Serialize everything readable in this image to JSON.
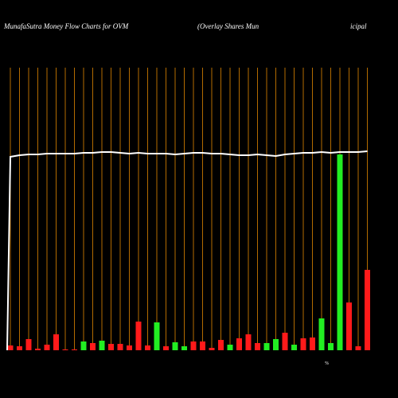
{
  "chart_data": {
    "type": "bar",
    "title": "MunafaSutra  Money Flow  Charts for OVM",
    "subtitle_parts": [
      "(Overlay Shares Mun",
      "icipal"
    ],
    "annotations": [
      "%"
    ],
    "categories": [
      null,
      null,
      null,
      null,
      null,
      null,
      null,
      null,
      null,
      null,
      null,
      null,
      null,
      null,
      null,
      null,
      null,
      null,
      null,
      null,
      null,
      null,
      null,
      null,
      null,
      null,
      null,
      null,
      null,
      null,
      null,
      null,
      null,
      null,
      null,
      null,
      null,
      null,
      null,
      null
    ],
    "values": [
      6,
      5,
      14,
      2,
      7,
      20,
      1,
      1,
      11,
      9,
      12,
      8,
      8,
      6,
      36,
      6,
      35,
      5,
      10,
      5,
      11,
      11,
      3,
      13,
      7,
      15,
      20,
      9,
      9,
      14,
      22,
      7,
      15,
      16,
      40,
      9,
      246,
      60,
      5,
      101
    ],
    "colors": [
      "#ff1a1a",
      "#ff1a1a",
      "#ff1a1a",
      "#ff1a1a",
      "#ff1a1a",
      "#ff1a1a",
      "#ff1a1a",
      "#ff1a1a",
      "#22ee22",
      "#ff1a1a",
      "#22ee22",
      "#ff1a1a",
      "#ff1a1a",
      "#ff1a1a",
      "#ff1a1a",
      "#ff1a1a",
      "#22ee22",
      "#ff1a1a",
      "#22ee22",
      "#22ee22",
      "#ff1a1a",
      "#ff1a1a",
      "#ff1a1a",
      "#ff1a1a",
      "#22ee22",
      "#ff1a1a",
      "#ff1a1a",
      "#ff1a1a",
      "#22ee22",
      "#22ee22",
      "#ff1a1a",
      "#22ee22",
      "#ff1a1a",
      "#ff1a1a",
      "#22ee22",
      "#22ee22",
      "#22ee22",
      "#ff1a1a",
      "#ff1a1a",
      "#ff1a1a"
    ],
    "line": {
      "color": "#ffffff",
      "values": [
        243,
        245,
        246,
        246,
        247,
        247,
        247,
        247,
        248,
        248,
        249,
        249,
        248,
        247,
        248,
        247,
        247,
        247,
        246,
        247,
        248,
        248,
        247,
        247,
        246,
        245,
        245,
        246,
        245,
        244,
        246,
        247,
        248,
        248,
        249,
        248,
        249,
        249,
        249,
        250
      ]
    },
    "ylim": [
      0,
      250
    ],
    "grid": true,
    "grid_color": "#b36b00"
  }
}
